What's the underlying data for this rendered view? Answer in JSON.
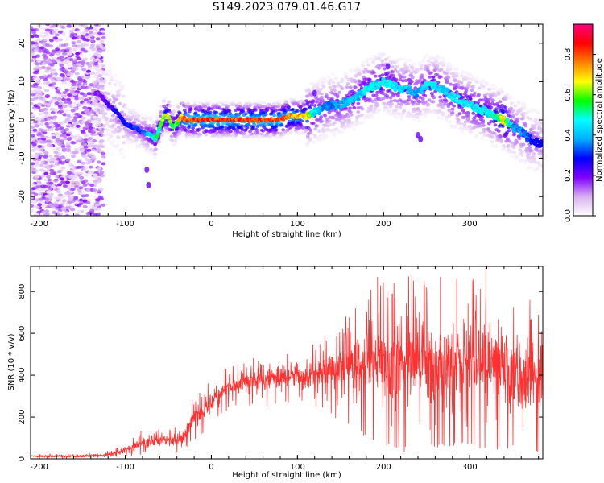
{
  "title": "S149.2023.079.01.46.G17",
  "chart_data": [
    {
      "type": "heatmap",
      "xlabel": "Height of straight line (km)",
      "ylabel": "Frequency (Hz)",
      "xlim": [
        -210,
        385
      ],
      "ylim": [
        -25,
        25
      ],
      "xticks": [
        -200,
        -100,
        0,
        100,
        200,
        300
      ],
      "yticks": [
        -20,
        -10,
        0,
        10,
        20
      ],
      "colorbar": {
        "label": "Normalized spectral amplitude",
        "range": [
          0,
          0.95
        ],
        "ticks": [
          0.0,
          0.2,
          0.4,
          0.6,
          0.8
        ],
        "colormap": [
          "#ffffff",
          "#d8b0f0",
          "#8000ff",
          "#0000ff",
          "#00b0ff",
          "#00ffff",
          "#00ff00",
          "#ffff00",
          "#ff8000",
          "#ff0000",
          "#ff0080"
        ]
      },
      "ridge": [
        {
          "x": -130,
          "y": 7,
          "a": 0.2
        },
        {
          "x": -120,
          "y": 4,
          "a": 0.25
        },
        {
          "x": -110,
          "y": 2,
          "a": 0.3
        },
        {
          "x": -100,
          "y": -1,
          "a": 0.3
        },
        {
          "x": -90,
          "y": -2,
          "a": 0.35
        },
        {
          "x": -80,
          "y": -3,
          "a": 0.35
        },
        {
          "x": -70,
          "y": -4,
          "a": 0.5
        },
        {
          "x": -65,
          "y": -5,
          "a": 0.55
        },
        {
          "x": -60,
          "y": -2,
          "a": 0.6
        },
        {
          "x": -55,
          "y": 1,
          "a": 0.7
        },
        {
          "x": -50,
          "y": 1,
          "a": 0.75
        },
        {
          "x": -45,
          "y": -2,
          "a": 0.6
        },
        {
          "x": -40,
          "y": -1,
          "a": 0.65
        },
        {
          "x": -35,
          "y": 1,
          "a": 0.8
        },
        {
          "x": -30,
          "y": 0,
          "a": 0.85
        },
        {
          "x": -20,
          "y": 0,
          "a": 0.9
        },
        {
          "x": -10,
          "y": 0,
          "a": 0.9
        },
        {
          "x": 0,
          "y": 0,
          "a": 0.92
        },
        {
          "x": 10,
          "y": 0,
          "a": 0.9
        },
        {
          "x": 20,
          "y": 0,
          "a": 0.9
        },
        {
          "x": 30,
          "y": 0,
          "a": 0.88
        },
        {
          "x": 40,
          "y": 0,
          "a": 0.9
        },
        {
          "x": 50,
          "y": 0,
          "a": 0.88
        },
        {
          "x": 60,
          "y": 0,
          "a": 0.9
        },
        {
          "x": 70,
          "y": 0,
          "a": 0.88
        },
        {
          "x": 80,
          "y": 0,
          "a": 0.9
        },
        {
          "x": 90,
          "y": 1,
          "a": 0.85
        },
        {
          "x": 100,
          "y": 1,
          "a": 0.8
        },
        {
          "x": 110,
          "y": 1,
          "a": 0.75
        },
        {
          "x": 120,
          "y": 2,
          "a": 0.5
        },
        {
          "x": 130,
          "y": 3,
          "a": 0.4
        },
        {
          "x": 140,
          "y": 4,
          "a": 0.4
        },
        {
          "x": 150,
          "y": 4,
          "a": 0.4
        },
        {
          "x": 160,
          "y": 5,
          "a": 0.45
        },
        {
          "x": 170,
          "y": 6,
          "a": 0.45
        },
        {
          "x": 180,
          "y": 8,
          "a": 0.5
        },
        {
          "x": 190,
          "y": 9,
          "a": 0.5
        },
        {
          "x": 200,
          "y": 10,
          "a": 0.55
        },
        {
          "x": 210,
          "y": 9,
          "a": 0.5
        },
        {
          "x": 220,
          "y": 8,
          "a": 0.45
        },
        {
          "x": 230,
          "y": 8,
          "a": 0.45
        },
        {
          "x": 240,
          "y": 7,
          "a": 0.4
        },
        {
          "x": 250,
          "y": 9,
          "a": 0.5
        },
        {
          "x": 260,
          "y": 9,
          "a": 0.5
        },
        {
          "x": 270,
          "y": 8,
          "a": 0.45
        },
        {
          "x": 280,
          "y": 6,
          "a": 0.5
        },
        {
          "x": 290,
          "y": 5,
          "a": 0.5
        },
        {
          "x": 300,
          "y": 4,
          "a": 0.5
        },
        {
          "x": 310,
          "y": 3,
          "a": 0.5
        },
        {
          "x": 320,
          "y": 2,
          "a": 0.5
        },
        {
          "x": 330,
          "y": 1,
          "a": 0.55
        },
        {
          "x": 340,
          "y": 0,
          "a": 0.75
        },
        {
          "x": 350,
          "y": -2,
          "a": 0.4
        },
        {
          "x": 360,
          "y": -3,
          "a": 0.4
        },
        {
          "x": 370,
          "y": -5,
          "a": 0.35
        },
        {
          "x": 380,
          "y": -6,
          "a": 0.3
        }
      ]
    },
    {
      "type": "line",
      "xlabel": "Height of straight line (km)",
      "ylabel": "SNR (10 * v/v)",
      "xlim": [
        -210,
        385
      ],
      "ylim": [
        0,
        920
      ],
      "xticks": [
        -200,
        -100,
        0,
        100,
        200,
        300
      ],
      "yticks": [
        0,
        200,
        400,
        600,
        800
      ],
      "color": "#ff3030",
      "envelope": [
        {
          "x": -210,
          "low": 0,
          "high": 25
        },
        {
          "x": -150,
          "low": 0,
          "high": 25
        },
        {
          "x": -120,
          "low": 0,
          "high": 40
        },
        {
          "x": -100,
          "low": 5,
          "high": 80
        },
        {
          "x": -80,
          "low": 15,
          "high": 140
        },
        {
          "x": -60,
          "low": 20,
          "high": 160
        },
        {
          "x": -40,
          "low": 20,
          "high": 150
        },
        {
          "x": -30,
          "low": 40,
          "high": 200
        },
        {
          "x": -20,
          "low": 80,
          "high": 320
        },
        {
          "x": -10,
          "low": 120,
          "high": 340
        },
        {
          "x": 0,
          "low": 160,
          "high": 380
        },
        {
          "x": 10,
          "low": 200,
          "high": 420
        },
        {
          "x": 20,
          "low": 230,
          "high": 450
        },
        {
          "x": 40,
          "low": 250,
          "high": 480
        },
        {
          "x": 60,
          "low": 250,
          "high": 500
        },
        {
          "x": 80,
          "low": 260,
          "high": 520
        },
        {
          "x": 100,
          "low": 280,
          "high": 520
        },
        {
          "x": 120,
          "low": 250,
          "high": 560
        },
        {
          "x": 140,
          "low": 200,
          "high": 620
        },
        {
          "x": 160,
          "low": 150,
          "high": 700
        },
        {
          "x": 180,
          "low": 100,
          "high": 800
        },
        {
          "x": 200,
          "low": 60,
          "high": 850
        },
        {
          "x": 220,
          "low": 50,
          "high": 870
        },
        {
          "x": 240,
          "low": 50,
          "high": 880
        },
        {
          "x": 260,
          "low": 50,
          "high": 870
        },
        {
          "x": 280,
          "low": 60,
          "high": 860
        },
        {
          "x": 300,
          "low": 60,
          "high": 860
        },
        {
          "x": 320,
          "low": 40,
          "high": 880
        },
        {
          "x": 340,
          "low": 40,
          "high": 800
        },
        {
          "x": 360,
          "low": 30,
          "high": 780
        },
        {
          "x": 385,
          "low": 30,
          "high": 740
        }
      ],
      "peaks": [
        {
          "x": 193,
          "y": 870
        },
        {
          "x": 233,
          "y": 880
        },
        {
          "x": 266,
          "y": 870
        },
        {
          "x": 285,
          "y": 860
        },
        {
          "x": 319,
          "y": 920
        },
        {
          "x": 250,
          "y": 820
        },
        {
          "x": 210,
          "y": 790
        },
        {
          "x": 370,
          "y": 760
        }
      ]
    }
  ]
}
